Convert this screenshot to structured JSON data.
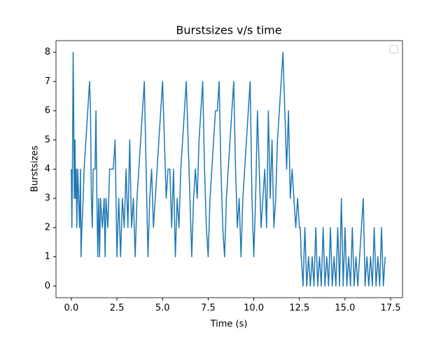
{
  "chart_data": {
    "type": "line",
    "title": "Burstsizes v/s time",
    "xlabel": "Time (s)",
    "ylabel": "Burstsizes",
    "color": "#1f77b4",
    "legend": "upper right",
    "xlim": [
      -0.84,
      18.15
    ],
    "ylim": [
      -0.4,
      8.4
    ],
    "xticks": [
      {
        "value": 0,
        "label": "0.0"
      },
      2.5,
      {
        "value": 5,
        "label": "5.0"
      },
      7.5,
      {
        "value": 10,
        "label": "10.0"
      },
      12.5,
      {
        "value": 15,
        "label": "15.0"
      },
      17.5
    ],
    "yticks": [
      0,
      1,
      2,
      3,
      4,
      5,
      6,
      7,
      8
    ],
    "x": [
      0.0,
      0.03,
      0.06,
      0.1,
      0.13,
      0.16,
      0.2,
      0.23,
      0.27,
      0.3,
      0.35,
      0.45,
      0.5,
      0.53,
      0.58,
      0.65,
      0.7,
      0.8,
      0.9,
      1.0,
      1.05,
      1.1,
      1.15,
      1.2,
      1.3,
      1.35,
      1.4,
      1.45,
      1.5,
      1.55,
      1.6,
      1.7,
      1.8,
      1.85,
      1.9,
      2.0,
      2.1,
      2.3,
      2.4,
      2.45,
      2.5,
      2.6,
      2.7,
      2.8,
      2.9,
      3.0,
      3.1,
      3.2,
      3.3,
      3.4,
      3.5,
      3.6,
      3.7,
      3.8,
      3.9,
      4.0,
      4.1,
      4.2,
      4.3,
      4.4,
      4.5,
      4.6,
      4.7,
      4.8,
      4.9,
      5.0,
      5.1,
      5.2,
      5.3,
      5.4,
      5.5,
      5.6,
      5.7,
      5.8,
      5.9,
      6.0,
      6.1,
      6.2,
      6.3,
      6.4,
      6.5,
      6.6,
      6.7,
      6.8,
      6.9,
      7.0,
      7.1,
      7.2,
      7.3,
      7.4,
      7.5,
      7.6,
      7.7,
      7.8,
      7.9,
      8.0,
      8.1,
      8.2,
      8.3,
      8.4,
      8.5,
      8.6,
      8.7,
      8.8,
      8.9,
      9.0,
      9.1,
      9.2,
      9.3,
      9.4,
      9.5,
      9.6,
      9.7,
      9.8,
      9.9,
      10.0,
      10.1,
      10.2,
      10.3,
      10.4,
      10.5,
      10.6,
      10.7,
      10.8,
      10.9,
      11.0,
      11.1,
      11.2,
      11.3,
      11.4,
      11.5,
      11.6,
      11.7,
      11.8,
      11.9,
      12.0,
      12.1,
      12.2,
      12.3,
      12.4,
      12.5,
      12.55,
      12.6,
      12.7,
      12.8,
      12.9,
      13.0,
      13.1,
      13.2,
      13.3,
      13.4,
      13.5,
      13.6,
      13.7,
      13.8,
      13.9,
      14.0,
      14.1,
      14.2,
      14.3,
      14.4,
      14.5,
      14.6,
      14.7,
      14.8,
      14.9,
      15.0,
      15.1,
      15.2,
      15.3,
      15.4,
      15.5,
      15.6,
      15.7,
      15.8,
      15.9,
      16.0,
      16.1,
      16.2,
      16.3,
      16.4,
      16.5,
      16.6,
      16.7,
      16.8,
      16.9,
      17.0,
      17.1,
      17.2
    ],
    "values": [
      4,
      2,
      4,
      8,
      6,
      3,
      5,
      3,
      4,
      2,
      4,
      2,
      4,
      1,
      2,
      3,
      4,
      5,
      6,
      7,
      6,
      3,
      2,
      4,
      4,
      6,
      3,
      1,
      3,
      1,
      3,
      2,
      3,
      1,
      3,
      2,
      4,
      4,
      5,
      3,
      1,
      3,
      1,
      3,
      2,
      4,
      2,
      5,
      2,
      3,
      1,
      3,
      4,
      5,
      6,
      7,
      4,
      1,
      3,
      4,
      2,
      3,
      4,
      5,
      6,
      7,
      5,
      3,
      4,
      4,
      2,
      4,
      1,
      3,
      2,
      4,
      5,
      6,
      7,
      5,
      3,
      1,
      3,
      4,
      3,
      5,
      6,
      7,
      4,
      2,
      1,
      3,
      4,
      5,
      6,
      6,
      7,
      4,
      2,
      1,
      3,
      4,
      5,
      6,
      7,
      4,
      2,
      3,
      1,
      3,
      4,
      5,
      6,
      7,
      3,
      1,
      3,
      6,
      4,
      2,
      3,
      4,
      2,
      6,
      3,
      5,
      2,
      3,
      5,
      6,
      7,
      8,
      6,
      4,
      6,
      3,
      4,
      3,
      2,
      3,
      2,
      2,
      1,
      0,
      2,
      0,
      1,
      0,
      1,
      0,
      2,
      0,
      1,
      0,
      2,
      0,
      1,
      0,
      2,
      0,
      1,
      0,
      2,
      0,
      3,
      0,
      2,
      0,
      1,
      0,
      2,
      0,
      1,
      0,
      1,
      2,
      3,
      0,
      1,
      0,
      1,
      0,
      2,
      0,
      1,
      0,
      2,
      0,
      1
    ]
  }
}
